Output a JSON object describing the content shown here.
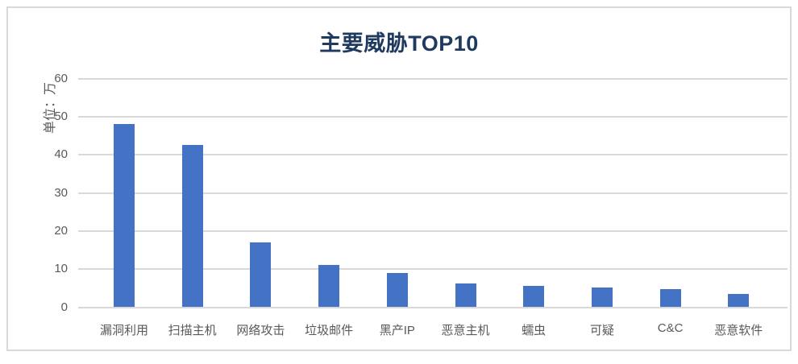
{
  "chart_data": {
    "type": "bar",
    "title": "主要威胁TOP10",
    "xlabel": "",
    "ylabel": "单位：万",
    "categories": [
      "漏洞利用",
      "扫描主机",
      "网络攻击",
      "垃圾邮件",
      "黑产IP",
      "恶意主机",
      "蠕虫",
      "可疑",
      "C&C",
      "恶意软件"
    ],
    "values": [
      48,
      42.5,
      17,
      11,
      9,
      6.3,
      5.7,
      5.2,
      4.8,
      3.5
    ],
    "y_ticks": [
      0,
      10,
      20,
      30,
      40,
      50,
      60
    ],
    "ylim": [
      0,
      60
    ],
    "grid": true,
    "legend_position": "none",
    "colors": {
      "bar": "#4472C4",
      "gridline": "#D9D9D9",
      "frame_border": "#D9D9D9",
      "title_text": "#1F3A5F",
      "axis_text": "#595959"
    }
  }
}
